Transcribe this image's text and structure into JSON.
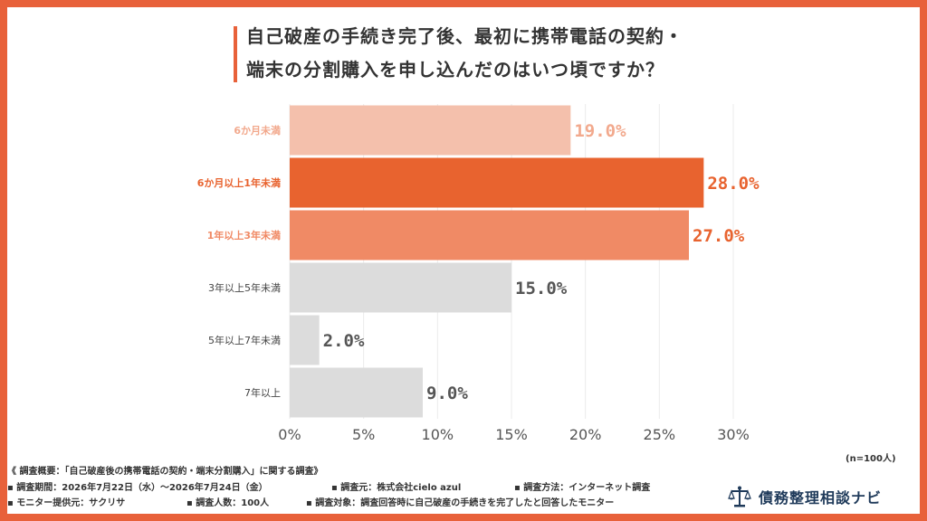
{
  "header": {
    "title_line1": "自己破産の手続き完了後、最初に携帯電話の契約・",
    "title_line2": "端末の分割購入を申し込んだのはいつ頃ですか？"
  },
  "sample_note": "(n=100人)",
  "footer": {
    "summary": "《 調査概要：「自己破産後の携帯電話の契約・端末分割購入」に関する調査》",
    "period": "▪ 調査期間：2026年7月22日（水）～2026年7月24日（金）",
    "organizer": "▪ 調査元：株式会社cielo azul",
    "method": "▪ 調査方法：インターネット調査",
    "provider": "▪ モニター提供元：サクリサ",
    "count": "▪ 調査人数：100人",
    "target": "▪ 調査対象：調査回答時に自己破産の手続きを完了したと回答したモニター"
  },
  "logo": {
    "text": "債務整理相談ナビ",
    "icon": "scales-of-justice-icon"
  },
  "colors": {
    "accent": "#e8613a",
    "highlight_bar": "#e8632f",
    "light_orange": "#f4c0ac",
    "mid_orange": "#f08a65",
    "gray": "#dcdcdc",
    "gray_label": "#555555",
    "light_label": "#f2a98d"
  },
  "chart_data": {
    "type": "bar",
    "orientation": "horizontal",
    "categories": [
      "6か月未満",
      "6か月以上1年未満",
      "1年以上3年未満",
      "3年以上5年未満",
      "5年以上7年未満",
      "7年以上"
    ],
    "values": [
      19.0,
      28.0,
      27.0,
      15.0,
      2.0,
      9.0
    ],
    "value_labels": [
      "19.0%",
      "28.0%",
      "27.0%",
      "15.0%",
      "2.0%",
      "9.0%"
    ],
    "bar_colors": [
      "#f4c0ac",
      "#e8632f",
      "#f08a65",
      "#dcdcdc",
      "#dcdcdc",
      "#dcdcdc"
    ],
    "category_label_colors": [
      "#f2a98d",
      "#e8632f",
      "#f08a65",
      "#444444",
      "#444444",
      "#444444"
    ],
    "value_label_colors": [
      "#f2a98d",
      "#e8632f",
      "#e8632f",
      "#555555",
      "#555555",
      "#555555"
    ],
    "x_ticks": [
      0,
      5,
      10,
      15,
      20,
      25,
      30
    ],
    "x_tick_labels": [
      "0%",
      "5%",
      "10%",
      "15%",
      "20%",
      "25%",
      "30%"
    ],
    "xlim": [
      0,
      30
    ],
    "grid": true
  }
}
